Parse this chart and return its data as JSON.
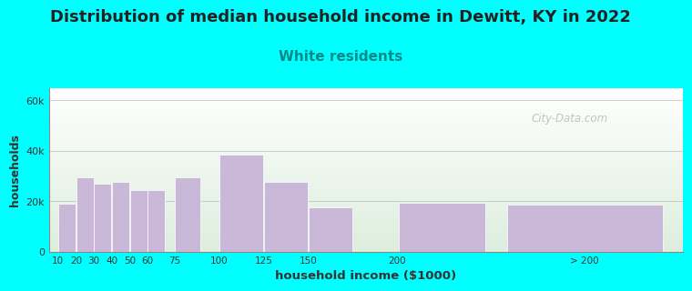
{
  "title": "Distribution of median household income in Dewitt, KY in 2022",
  "subtitle": "White residents",
  "xlabel": "household income ($1000)",
  "ylabel": "households",
  "background_color": "#00FFFF",
  "bar_color": "#c9b8d8",
  "title_fontsize": 13,
  "title_color": "#222222",
  "subtitle_fontsize": 11,
  "subtitle_color": "#008888",
  "values": [
    19000,
    29500,
    27000,
    27500,
    24500,
    24500,
    29500,
    38500,
    27500,
    17500,
    19500,
    18500
  ],
  "bar_lefts": [
    10,
    20,
    30,
    40,
    50,
    60,
    75,
    100,
    125,
    150,
    200,
    260
  ],
  "bar_widths": [
    10,
    10,
    10,
    10,
    10,
    10,
    15,
    25,
    25,
    25,
    50,
    90
  ],
  "xtick_positions": [
    10,
    20,
    30,
    40,
    50,
    60,
    75,
    100,
    125,
    150,
    200,
    305
  ],
  "xtick_labels": [
    "10",
    "20",
    "30",
    "40",
    "50",
    "60",
    "75",
    "100",
    "125",
    "150",
    "200",
    "> 200"
  ],
  "yticks": [
    0,
    20000,
    40000,
    60000
  ],
  "ytick_labels": [
    "0",
    "20k",
    "40k",
    "60k"
  ],
  "ylim": [
    0,
    65000
  ],
  "xlim": [
    5,
    360
  ],
  "watermark": "City-Data.com",
  "plot_bg_top_color": "#ddeedd",
  "plot_bg_bottom_color": "#ffffff"
}
